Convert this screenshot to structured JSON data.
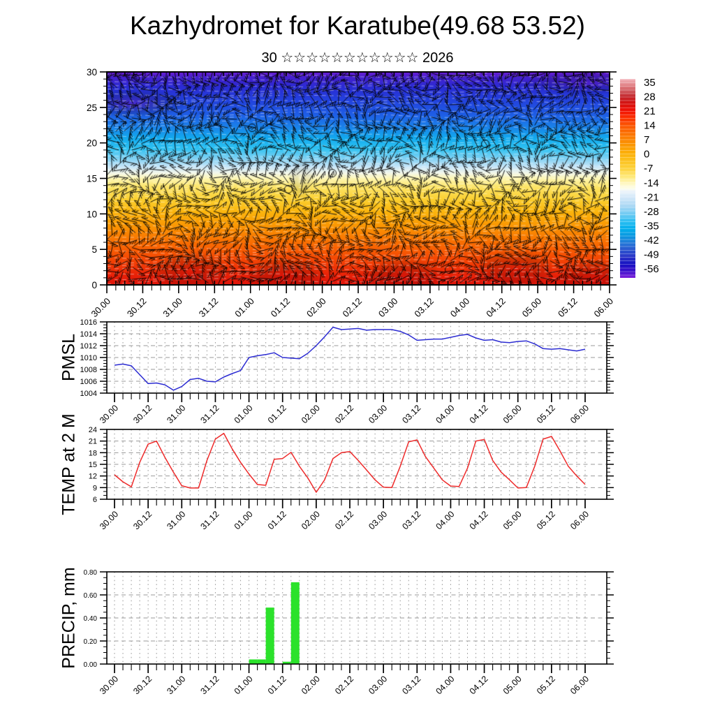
{
  "title": "Kazhydromet for Karatube(49.68 53.52)",
  "subtitle": {
    "prefix": "30",
    "stars": "☆☆☆☆☆☆☆☆☆☆☆",
    "suffix": "2026",
    "text": "30 ☆☆☆☆☆☆☆☆☆☆☆ 2026"
  },
  "x_axis": {
    "tick_labels": [
      "30.00",
      "30.12",
      "31.00",
      "31.12",
      "01.00",
      "01.12",
      "02.00",
      "02.12",
      "03.00",
      "03.12",
      "04.00",
      "04.12",
      "05.00",
      "05.12",
      "06.00"
    ],
    "major_step_hours": 12,
    "minor_step_hours": 3,
    "total_hours": 168
  },
  "chart_data": [
    {
      "type": "heatmap",
      "name": "upper-air temperature cross-section with wind barbs",
      "ylabel": "",
      "ylim": [
        0,
        30
      ],
      "y_ticks": [
        0,
        5,
        10,
        15,
        20,
        25,
        30
      ],
      "colorbar_tick_labels": [
        "35",
        "28",
        "21",
        "14",
        "7",
        "0",
        "-7",
        "-14",
        "-21",
        "-28",
        "-35",
        "-42",
        "-49",
        "-56"
      ],
      "colorbar_stops": [
        [
          0,
          "#f3b6bd"
        ],
        [
          0.03,
          "#e2858a"
        ],
        [
          0.06,
          "#d05a5e"
        ],
        [
          0.09,
          "#c4262b"
        ],
        [
          0.12,
          "#d31312"
        ],
        [
          0.155,
          "#ee1107"
        ],
        [
          0.19,
          "#fb2d03"
        ],
        [
          0.235,
          "#fb5703"
        ],
        [
          0.28,
          "#fb7502"
        ],
        [
          0.325,
          "#fb9304"
        ],
        [
          0.37,
          "#fcae08"
        ],
        [
          0.41,
          "#fcc11e"
        ],
        [
          0.45,
          "#fdd23b"
        ],
        [
          0.49,
          "#fee878"
        ],
        [
          0.525,
          "#fff7c0"
        ],
        [
          0.55,
          "#fdfdea"
        ],
        [
          0.565,
          "#ecf4fb"
        ],
        [
          0.6,
          "#cfe6f8"
        ],
        [
          0.64,
          "#a8d7f4"
        ],
        [
          0.68,
          "#6fcbf3"
        ],
        [
          0.72,
          "#27bdf1"
        ],
        [
          0.755,
          "#02aeec"
        ],
        [
          0.79,
          "#0b97e0"
        ],
        [
          0.825,
          "#2478d8"
        ],
        [
          0.86,
          "#2b55cf"
        ],
        [
          0.895,
          "#2b35c8"
        ],
        [
          0.93,
          "#1612c2"
        ],
        [
          0.965,
          "#3b0fcb"
        ],
        [
          1,
          "#7e22da"
        ]
      ],
      "fill_stops": [
        [
          0,
          "#6c1cd4"
        ],
        [
          0.025,
          "#4520cd"
        ],
        [
          0.07,
          "#2a2bd3"
        ],
        [
          0.13,
          "#2340dc"
        ],
        [
          0.2,
          "#1e5de5"
        ],
        [
          0.26,
          "#1a83e9"
        ],
        [
          0.31,
          "#12a9ee"
        ],
        [
          0.36,
          "#2fc2f2"
        ],
        [
          0.41,
          "#85d2f3"
        ],
        [
          0.445,
          "#c6e5f8"
        ],
        [
          0.475,
          "#f3f7e9"
        ],
        [
          0.5,
          "#fdf6b2"
        ],
        [
          0.54,
          "#fce467"
        ],
        [
          0.595,
          "#fbd133"
        ],
        [
          0.655,
          "#fbb60e"
        ],
        [
          0.715,
          "#fa9a04"
        ],
        [
          0.775,
          "#f97b02"
        ],
        [
          0.84,
          "#f75a03"
        ],
        [
          0.9,
          "#f23c05"
        ],
        [
          0.955,
          "#e82108"
        ],
        [
          1,
          "#df1309"
        ]
      ],
      "profile_heights": [
        30,
        28,
        26,
        24,
        22,
        20,
        18,
        16,
        15,
        14,
        12,
        10,
        8,
        6,
        4,
        2,
        0
      ],
      "profile_temps": [
        -60,
        -57,
        -54,
        -50,
        -44,
        -36,
        -27,
        -18,
        -14,
        -9,
        -3,
        2,
        8,
        13,
        17,
        21,
        24
      ]
    },
    {
      "type": "line",
      "ylabel": "PMSL",
      "color": "#2c2cd2",
      "ylim": [
        1004,
        1016
      ],
      "y_ticks": [
        1004,
        1006,
        1008,
        1010,
        1012,
        1014,
        1016
      ],
      "start_hour": 0,
      "step_hours": 3,
      "values": [
        1008.7,
        1008.9,
        1008.6,
        1007.1,
        1005.6,
        1005.7,
        1005.4,
        1004.5,
        1005.1,
        1006.3,
        1006.5,
        1006.0,
        1005.9,
        1006.7,
        1007.3,
        1007.8,
        1010.0,
        1010.3,
        1010.5,
        1010.8,
        1010.0,
        1009.9,
        1009.8,
        1010.7,
        1012.0,
        1013.5,
        1015.1,
        1014.7,
        1014.8,
        1014.9,
        1014.6,
        1014.7,
        1014.7,
        1014.7,
        1014.4,
        1013.8,
        1012.9,
        1013.0,
        1013.1,
        1013.1,
        1013.4,
        1013.7,
        1013.9,
        1013.3,
        1012.9,
        1013.0,
        1012.6,
        1012.5,
        1012.7,
        1012.8,
        1012.3,
        1011.5,
        1011.4,
        1011.5,
        1011.3,
        1011.1,
        1011.4
      ]
    },
    {
      "type": "line",
      "ylabel": "TEMP at 2 M",
      "color": "#ee2b2b",
      "ylim": [
        6,
        24
      ],
      "y_ticks": [
        6,
        9,
        12,
        15,
        18,
        21,
        24
      ],
      "start_hour": 0,
      "step_hours": 3,
      "values": [
        12.3,
        10.5,
        9.2,
        15.5,
        20.2,
        21.0,
        16.8,
        13.0,
        9.5,
        8.9,
        8.9,
        16.0,
        21.5,
        23.0,
        19.0,
        15.5,
        12.5,
        9.8,
        9.6,
        16.3,
        16.5,
        18.1,
        14.5,
        11.5,
        7.8,
        11.0,
        16.5,
        18.0,
        18.3,
        16.0,
        13.5,
        11.0,
        9.1,
        9.0,
        14.5,
        20.8,
        21.3,
        17.0,
        14.0,
        11.0,
        9.4,
        9.3,
        14.0,
        21.0,
        21.4,
        16.0,
        13.0,
        11.0,
        8.9,
        9.0,
        14.5,
        21.5,
        22.2,
        18.5,
        14.5,
        12.0,
        9.8
      ]
    },
    {
      "type": "bar",
      "ylabel": "PRECIP, mm",
      "color": "#2be22b",
      "ylim": [
        0,
        0.8
      ],
      "y_ticks": [
        0,
        0.2,
        0.4,
        0.6,
        0.8
      ],
      "y_tick_labels": [
        "0.00",
        "0.20",
        "0.40",
        "0.60",
        "0.80"
      ],
      "interval_hours": 3,
      "values": [
        0,
        0,
        0,
        0,
        0,
        0,
        0,
        0,
        0,
        0,
        0,
        0,
        0,
        0,
        0,
        0,
        0.04,
        0.04,
        0.49,
        0,
        0.02,
        0.71,
        0,
        0,
        0,
        0,
        0,
        0,
        0,
        0,
        0,
        0,
        0,
        0,
        0,
        0,
        0,
        0,
        0,
        0,
        0,
        0,
        0,
        0,
        0,
        0,
        0,
        0,
        0,
        0,
        0,
        0,
        0,
        0,
        0,
        0
      ]
    }
  ]
}
